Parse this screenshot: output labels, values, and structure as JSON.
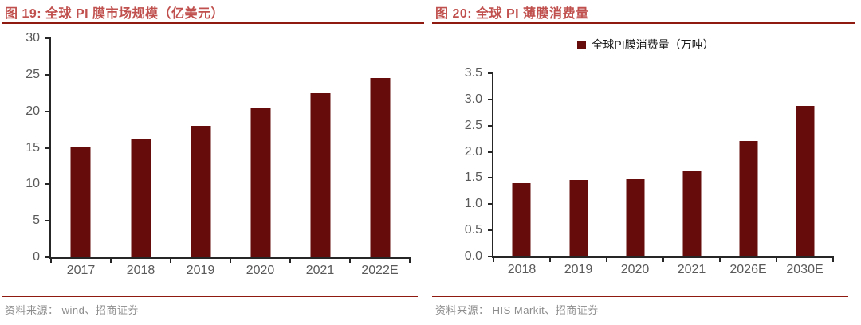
{
  "colors": {
    "bar": "#660D0B",
    "title": "#C0504D",
    "rule": "#8F1A10",
    "axisline": "#262626",
    "axistext": "#595959",
    "legendtext": "#1A1A1A",
    "srctext": "#8C8C8C"
  },
  "figures": [
    {
      "title": "图 19:  全球 PI 膜市场规模（亿美元）",
      "source": "资料来源：  wind、招商证券"
    },
    {
      "title": "图 20:  全球 PI 薄膜消费量",
      "legend": "全球PI膜消费量（万吨）",
      "source": "资料来源：  HIS Markit、招商证券"
    }
  ],
  "chart_data": [
    {
      "type": "bar",
      "title": "全球 PI 膜市场规模（亿美元）",
      "categories": [
        "2017",
        "2018",
        "2019",
        "2020",
        "2021",
        "2022E"
      ],
      "values": [
        15.1,
        16.2,
        18.0,
        20.5,
        22.5,
        24.5
      ],
      "xlabel": "",
      "ylabel": "",
      "ylim": [
        0,
        30
      ],
      "ytick_labels": [
        "0",
        "5",
        "10",
        "15",
        "20",
        "25",
        "30"
      ],
      "grid": false,
      "legend_position": "none",
      "bar_color": "#660D0B"
    },
    {
      "type": "bar",
      "title": "全球 PI 薄膜消费量",
      "categories": [
        "2018",
        "2019",
        "2020",
        "2021",
        "2026E",
        "2030E"
      ],
      "values": [
        1.4,
        1.46,
        1.48,
        1.63,
        2.21,
        2.87
      ],
      "xlabel": "",
      "ylabel": "",
      "ylim": [
        0,
        3.5
      ],
      "ytick_labels": [
        "0.0",
        "0.5",
        "1.0",
        "1.5",
        "2.0",
        "2.5",
        "3.0",
        "3.5"
      ],
      "grid": false,
      "legend": [
        "全球PI膜消费量（万吨）"
      ],
      "legend_position": "top",
      "bar_color": "#660D0B"
    }
  ]
}
